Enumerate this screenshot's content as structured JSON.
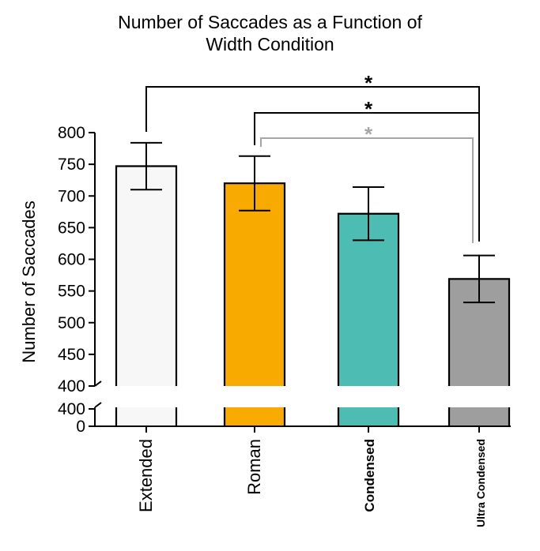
{
  "chart_data": {
    "type": "bar",
    "title_lines": [
      "Number of Saccades as a Function of",
      "Width Condition"
    ],
    "ylabel": "Number of Saccades",
    "xlabel": "",
    "categories": [
      "Extended",
      "Roman",
      "Condensed",
      "Ultra Condensed"
    ],
    "values": [
      747,
      720,
      672,
      569
    ],
    "error_high": [
      784,
      763,
      714,
      606
    ],
    "error_low": [
      710,
      677,
      630,
      532
    ],
    "ylim": [
      400,
      800
    ],
    "yticks": [
      "800",
      "750",
      "700",
      "650",
      "600",
      "550",
      "500",
      "450",
      "400"
    ],
    "broken_axis_ticks": [
      "400",
      "0"
    ],
    "colors": [
      "#f7f7f7",
      "#f9aa00",
      "#4dbdb4",
      "#9e9e9e"
    ],
    "significance_marker": "*",
    "significance_colors": [
      "#000000",
      "#000000",
      "#a6a6a6"
    ],
    "grid": false,
    "legend": "none"
  }
}
